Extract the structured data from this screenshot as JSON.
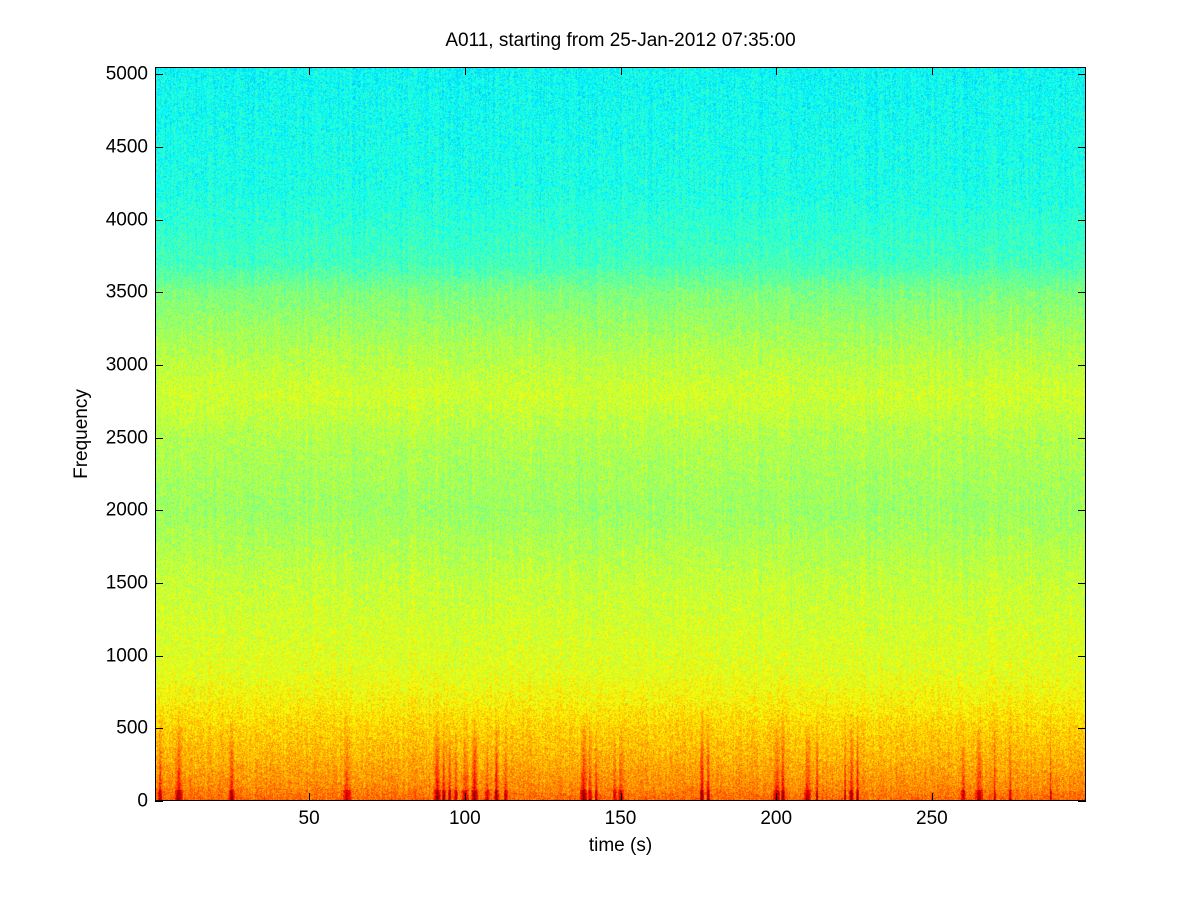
{
  "chart_data": {
    "type": "heatmap",
    "title": "A011, starting from 25-Jan-2012 07:35:00",
    "xlabel": "time (s)",
    "ylabel": "Frequency",
    "xlim": [
      0.5,
      299.5
    ],
    "ylim": [
      0,
      5050
    ],
    "xticks": [
      50,
      100,
      150,
      200,
      250
    ],
    "yticks": [
      0,
      500,
      1000,
      1500,
      2000,
      2500,
      3000,
      3500,
      4000,
      4500,
      5000
    ],
    "colormap": "jet",
    "grid": false,
    "intensity_profile": {
      "frequency": [
        0,
        100,
        300,
        500,
        700,
        900,
        1500,
        2000,
        2500,
        2800,
        3100,
        3500,
        3700,
        4200,
        5050
      ],
      "level": [
        0.78,
        0.74,
        0.7,
        0.67,
        0.63,
        0.6,
        0.57,
        0.53,
        0.55,
        0.58,
        0.55,
        0.5,
        0.44,
        0.4,
        0.38
      ]
    },
    "transient_bursts_s": [
      2,
      8,
      25,
      62,
      91,
      93,
      95,
      97,
      100,
      103,
      107,
      110,
      113,
      138,
      140,
      142,
      148,
      150,
      176,
      178,
      200,
      202,
      210,
      213,
      222,
      224,
      226,
      260,
      265,
      270,
      275,
      288
    ]
  },
  "colors": {
    "background": "#ffffff",
    "axes": "#000000"
  }
}
